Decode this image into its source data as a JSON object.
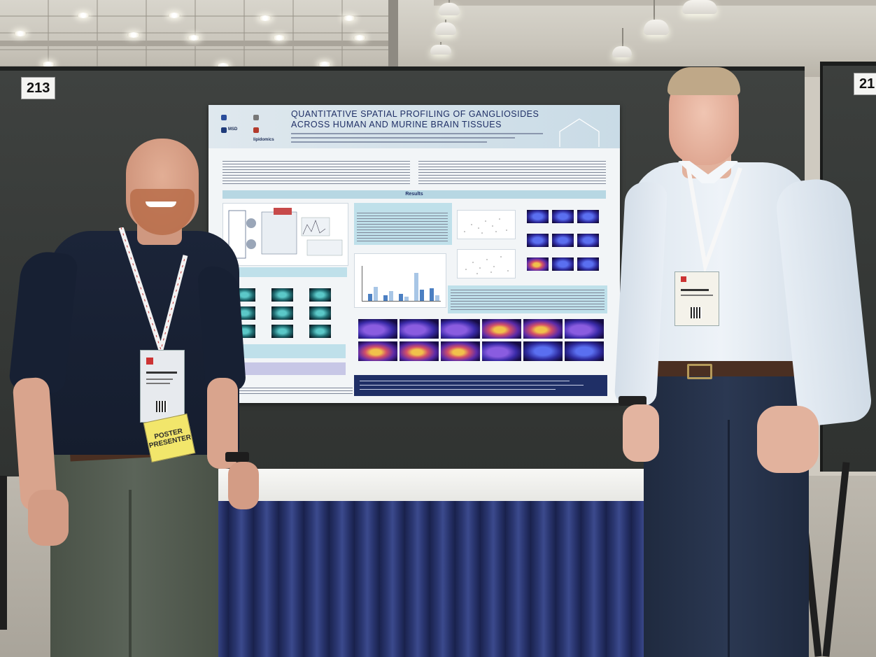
{
  "scene": {
    "board_numbers": {
      "left": "213",
      "right": "21"
    },
    "poster": {
      "title_line1": "QUANTITATIVE SPATIAL PROFILING OF GANGLIOSIDES",
      "title_line2": "ACROSS HUMAN AND MURINE BRAIN TISSUES",
      "results_label": "Results",
      "logos": [
        "MSD",
        "lipidomics"
      ]
    },
    "badge_left": {
      "presenter_line1": "POSTER",
      "presenter_line2": "PRESENTER"
    },
    "colors": {
      "board": "#373a38",
      "table_skirt": "#2a3670",
      "poster_title": "#1f2f66",
      "presenter_tag": "#f2e66b"
    }
  }
}
